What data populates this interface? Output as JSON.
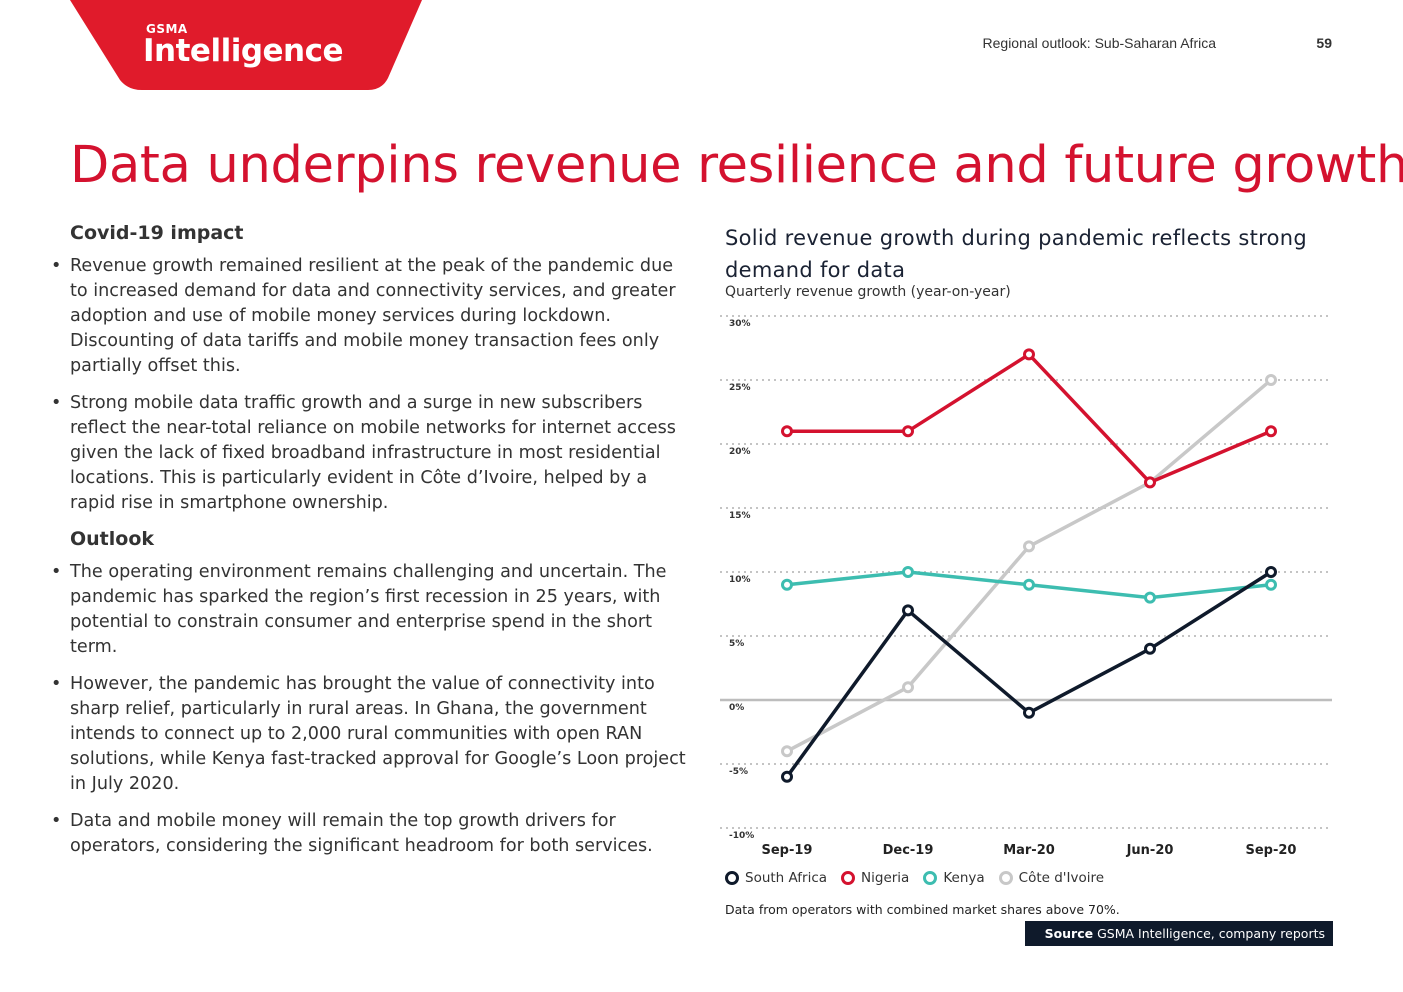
{
  "header": {
    "logo_small": "GSMA",
    "logo_big": "Intelligence",
    "section": "Regional outlook: Sub-Saharan Africa",
    "page_number": "59"
  },
  "page_title": "Data underpins revenue resilience and future growth",
  "left": {
    "covid_heading": "Covid-19 impact",
    "covid_bullets": [
      "Revenue growth remained resilient at the peak of the pandemic due to increased demand for data and connectivity services, and greater adoption and use of mobile money services during lockdown. Discounting of data tariffs and mobile money transaction fees only partially offset this.",
      "Strong mobile data traffic growth and a surge in new subscribers reflect the near-total reliance on mobile networks for internet access given the lack of fixed broadband infrastructure in most residential locations. This is particularly evident in Côte d’Ivoire, helped by a rapid rise in smartphone ownership."
    ],
    "outlook_heading": "Outlook",
    "outlook_bullets": [
      "The operating environment remains challenging and uncertain. The pandemic has sparked the region’s first recession in 25 years, with potential to constrain consumer and enterprise spend in the short term.",
      "However, the pandemic has brought the value of connectivity into sharp relief, particularly in rural areas. In Ghana, the government intends to connect up to 2,000 rural communities with open RAN solutions, while Kenya fast-tracked approval for Google’s Loon project in July 2020.",
      "Data and mobile money will remain the top growth drivers for operators, considering the significant headroom for both services."
    ]
  },
  "chart_data": {
    "type": "line",
    "title": "Solid revenue growth during pandemic reflects strong demand for data",
    "subtitle": "Quarterly revenue growth (year-on-year)",
    "categories": [
      "Sep-19",
      "Dec-19",
      "Mar-20",
      "Jun-20",
      "Sep-20"
    ],
    "y_ticks": [
      "30%",
      "25%",
      "20%",
      "15%",
      "10%",
      "5%",
      "0%",
      "-5%",
      "-10%"
    ],
    "ylim": [
      -10,
      30
    ],
    "grid": true,
    "legend_position": "bottom",
    "series": [
      {
        "name": "South Africa",
        "color": "#0f1a2b",
        "values": [
          -6,
          7,
          -1,
          4,
          10
        ]
      },
      {
        "name": "Nigeria",
        "color": "#d4122f",
        "values": [
          21,
          21,
          27,
          17,
          21
        ]
      },
      {
        "name": "Kenya",
        "color": "#3dbdb0",
        "values": [
          9,
          10,
          9,
          8,
          9
        ]
      },
      {
        "name": "Côte d'Ivoire",
        "color": "#c8c8c8",
        "values": [
          -4,
          1,
          12,
          17,
          25
        ]
      }
    ],
    "note": "Data from operators with combined market shares above 70%.",
    "source_label": "Source",
    "source_text": "GSMA Intelligence, company reports"
  },
  "colors": {
    "brand_red": "#d4122f",
    "navy": "#0f1a2b"
  }
}
